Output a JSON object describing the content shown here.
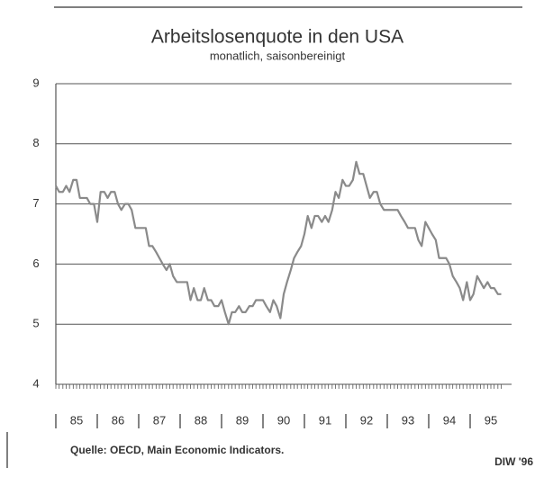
{
  "chart_data": {
    "type": "line",
    "title": "Arbeitslosenquote in den USA",
    "subtitle": "monatlich, saisonbereinigt",
    "source": "Quelle: OECD, Main Economic Indicators.",
    "credit": "DIW '96",
    "color": "#8a8a8a",
    "grid": true,
    "x": [
      1985,
      1985.08,
      1985.17,
      1985.25,
      1985.33,
      1985.42,
      1985.5,
      1985.58,
      1985.67,
      1985.75,
      1985.83,
      1985.92,
      1986,
      1986.08,
      1986.17,
      1986.25,
      1986.33,
      1986.42,
      1986.5,
      1986.58,
      1986.67,
      1986.75,
      1986.83,
      1986.92,
      1987,
      1987.08,
      1987.17,
      1987.25,
      1987.33,
      1987.42,
      1987.5,
      1987.58,
      1987.67,
      1987.75,
      1987.83,
      1987.92,
      1988,
      1988.08,
      1988.17,
      1988.25,
      1988.33,
      1988.42,
      1988.5,
      1988.58,
      1988.67,
      1988.75,
      1988.83,
      1988.92,
      1989,
      1989.08,
      1989.17,
      1989.25,
      1989.33,
      1989.42,
      1989.5,
      1989.58,
      1989.67,
      1989.75,
      1989.83,
      1989.92,
      1990,
      1990.08,
      1990.17,
      1990.25,
      1990.33,
      1990.42,
      1990.5,
      1990.58,
      1990.67,
      1990.75,
      1990.83,
      1990.92,
      1991,
      1991.08,
      1991.17,
      1991.25,
      1991.33,
      1991.42,
      1991.5,
      1991.58,
      1991.67,
      1991.75,
      1991.83,
      1991.92,
      1992,
      1992.08,
      1992.17,
      1992.25,
      1992.33,
      1992.42,
      1992.5,
      1992.58,
      1992.67,
      1992.75,
      1992.83,
      1992.92,
      1993,
      1993.08,
      1993.17,
      1993.25,
      1993.33,
      1993.42,
      1993.5,
      1993.58,
      1993.67,
      1993.75,
      1993.83,
      1993.92,
      1994,
      1994.08,
      1994.17,
      1994.25,
      1994.33,
      1994.42,
      1994.5,
      1994.58,
      1994.67,
      1994.75,
      1994.83,
      1994.92,
      1995,
      1995.08,
      1995.17,
      1995.25,
      1995.33,
      1995.42,
      1995.5,
      1995.58,
      1995.67,
      1995.75
    ],
    "values": [
      7.3,
      7.2,
      7.2,
      7.3,
      7.2,
      7.4,
      7.4,
      7.1,
      7.1,
      7.1,
      7.0,
      7.0,
      6.7,
      7.2,
      7.2,
      7.1,
      7.2,
      7.2,
      7.0,
      6.9,
      7.0,
      7.0,
      6.9,
      6.6,
      6.6,
      6.6,
      6.6,
      6.3,
      6.3,
      6.2,
      6.1,
      6.0,
      5.9,
      6.0,
      5.8,
      5.7,
      5.7,
      5.7,
      5.7,
      5.4,
      5.6,
      5.4,
      5.4,
      5.6,
      5.4,
      5.4,
      5.3,
      5.3,
      5.4,
      5.2,
      5.0,
      5.2,
      5.2,
      5.3,
      5.2,
      5.2,
      5.3,
      5.3,
      5.4,
      5.4,
      5.4,
      5.3,
      5.2,
      5.4,
      5.3,
      5.1,
      5.5,
      5.7,
      5.9,
      6.1,
      6.2,
      6.3,
      6.5,
      6.8,
      6.6,
      6.8,
      6.8,
      6.7,
      6.8,
      6.7,
      6.9,
      7.2,
      7.1,
      7.4,
      7.3,
      7.3,
      7.4,
      7.7,
      7.5,
      7.5,
      7.3,
      7.1,
      7.2,
      7.2,
      7.0,
      6.9,
      6.9,
      6.9,
      6.9,
      6.9,
      6.8,
      6.7,
      6.6,
      6.6,
      6.6,
      6.4,
      6.3,
      6.7,
      6.6,
      6.5,
      6.4,
      6.1,
      6.1,
      6.1,
      6.0,
      5.8,
      5.7,
      5.6,
      5.4,
      5.7,
      5.4,
      5.5,
      5.8,
      5.7,
      5.6,
      5.7,
      5.6,
      5.6,
      5.5,
      5.5
    ],
    "xlim": [
      1985,
      1996
    ],
    "xticks": [
      {
        "value": 1985.5,
        "label": "85"
      },
      {
        "value": 1986.5,
        "label": "86"
      },
      {
        "value": 1987.5,
        "label": "87"
      },
      {
        "value": 1988.5,
        "label": "88"
      },
      {
        "value": 1989.5,
        "label": "89"
      },
      {
        "value": 1990.5,
        "label": "90"
      },
      {
        "value": 1991.5,
        "label": "91"
      },
      {
        "value": 1992.5,
        "label": "92"
      },
      {
        "value": 1993.5,
        "label": "93"
      },
      {
        "value": 1994.5,
        "label": "94"
      },
      {
        "value": 1995.5,
        "label": "95"
      }
    ],
    "ylim": [
      4,
      9
    ],
    "yticks": [
      4,
      5,
      6,
      7,
      8,
      9
    ]
  }
}
